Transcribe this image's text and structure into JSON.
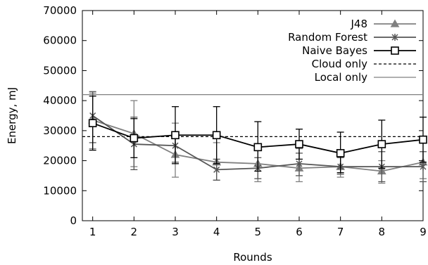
{
  "chart_data": {
    "type": "line",
    "xlabel": "Rounds",
    "ylabel": "Energy, mJ",
    "xlim": [
      0.75,
      9
    ],
    "ylim": [
      0,
      70000
    ],
    "x": [
      1,
      2,
      3,
      4,
      5,
      6,
      7,
      8,
      9
    ],
    "x_ticks": [
      "1",
      "2",
      "3",
      "4",
      "5",
      "6",
      "7",
      "8",
      "9"
    ],
    "y_ticks": [
      "0",
      "10000",
      "20000",
      "30000",
      "40000",
      "50000",
      "60000",
      "70000"
    ],
    "grid": false,
    "legend_position": "top-right",
    "series": [
      {
        "name": "J48",
        "marker": "triangle",
        "color": "#808080",
        "values": [
          33500,
          29000,
          22000,
          19500,
          19000,
          17500,
          18000,
          16500,
          19500
        ],
        "err_low": [
          24000,
          18000,
          14500,
          13500,
          13000,
          13000,
          14500,
          12500,
          14000
        ],
        "err_high": [
          42500,
          40000,
          32500,
          26000,
          25000,
          24000,
          22000,
          20000,
          26000
        ]
      },
      {
        "name": "Random Forest",
        "marker": "star",
        "color": "#555555",
        "values": [
          35000,
          25500,
          25000,
          17000,
          17500,
          19000,
          18000,
          18000,
          18000
        ],
        "err_low": [
          26000,
          17000,
          19500,
          13500,
          14000,
          15000,
          15500,
          13000,
          13000
        ],
        "err_high": [
          43000,
          34500,
          29000,
          20500,
          21000,
          22500,
          21000,
          23000,
          23000
        ]
      },
      {
        "name": "Naive Bayes",
        "marker": "square",
        "color": "#000000",
        "values": [
          32500,
          27500,
          28500,
          28500,
          24500,
          25500,
          22500,
          25500,
          27000
        ],
        "err_low": [
          23500,
          21000,
          19000,
          19000,
          16500,
          20500,
          16000,
          17500,
          19500
        ],
        "err_high": [
          41500,
          34000,
          38000,
          38000,
          33000,
          30500,
          29500,
          33500,
          34500
        ]
      }
    ],
    "reference_lines": [
      {
        "name": "Cloud only",
        "value": 28000,
        "style": "dashed",
        "color": "#000000"
      },
      {
        "name": "Local only",
        "value": 42000,
        "style": "solid",
        "color": "#808080"
      }
    ]
  }
}
